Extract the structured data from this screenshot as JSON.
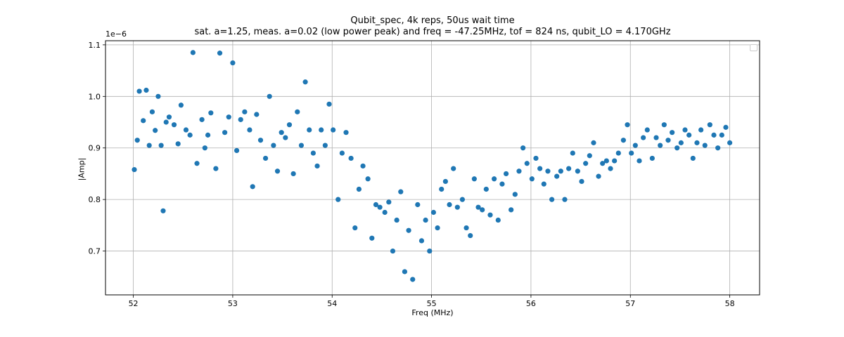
{
  "chart_data": {
    "type": "scatter",
    "title_line1": "Qubit_spec, 4k reps, 50us wait time",
    "title_line2": "sat. a=1.25, meas. a=0.02 (low power peak) and freq = -47.25MHz, tof = 824 ns, qubit_LO = 4.170GHz",
    "xlabel": "Freq (MHz)",
    "ylabel": "|Amp|",
    "y_offset_label": "1e−6",
    "xlim": [
      51.72,
      58.3
    ],
    "ylim": [
      0.615,
      1.108
    ],
    "x_ticks": [
      52,
      53,
      54,
      55,
      56,
      57,
      58
    ],
    "x_tick_labels": [
      "52",
      "53",
      "54",
      "55",
      "56",
      "57",
      "58"
    ],
    "y_ticks": [
      0.7,
      0.8,
      0.9,
      1.0,
      1.1
    ],
    "y_tick_labels": [
      "0.7",
      "0.8",
      "0.9",
      "1.0",
      "1.1"
    ],
    "grid": true,
    "legend": "upper right, empty",
    "marker_color": "#1f77b4",
    "series": [
      {
        "x": [
          52.01,
          52.04,
          52.06,
          52.1,
          52.13,
          52.16,
          52.19,
          52.22,
          52.25,
          52.28,
          52.3,
          52.33,
          52.36,
          52.41,
          52.45,
          52.48,
          52.53,
          52.57,
          52.6,
          52.64,
          52.69,
          52.72,
          52.75,
          52.78,
          52.83,
          52.87,
          52.92,
          52.96,
          53.0,
          53.04,
          53.08,
          53.12,
          53.17,
          53.2,
          53.24,
          53.28,
          53.33,
          53.37,
          53.41,
          53.45,
          53.49,
          53.53,
          53.57,
          53.61,
          53.65,
          53.69,
          53.73,
          53.77,
          53.81,
          53.85,
          53.89,
          53.93,
          53.97,
          54.01,
          54.06,
          54.1,
          54.14,
          54.19,
          54.23,
          54.27,
          54.31,
          54.36,
          54.4,
          54.44,
          54.48,
          54.53,
          54.57,
          54.61,
          54.65,
          54.69,
          54.73,
          54.77,
          54.81,
          54.86,
          54.9,
          54.94,
          54.98,
          55.02,
          55.06,
          55.1,
          55.14,
          55.18,
          55.22,
          55.26,
          55.31,
          55.35,
          55.39,
          55.43,
          55.47,
          55.51,
          55.55,
          55.59,
          55.63,
          55.67,
          55.71,
          55.75,
          55.8,
          55.84,
          55.88,
          55.92,
          55.96,
          56.01,
          56.05,
          56.09,
          56.13,
          56.17,
          56.21,
          56.26,
          56.3,
          56.34,
          56.38,
          56.42,
          56.47,
          56.51,
          56.55,
          56.59,
          56.63,
          56.68,
          56.72,
          56.76,
          56.8,
          56.84,
          56.88,
          56.93,
          56.97,
          57.01,
          57.05,
          57.09,
          57.13,
          57.17,
          57.22,
          57.26,
          57.3,
          57.34,
          57.38,
          57.42,
          57.47,
          57.51,
          57.55,
          57.59,
          57.63,
          57.67,
          57.71,
          57.75,
          57.8,
          57.84,
          57.88,
          57.92,
          57.96,
          58.0
        ],
        "y": [
          0.858,
          0.915,
          1.01,
          0.953,
          1.012,
          0.905,
          0.97,
          0.934,
          1.0,
          0.905,
          0.778,
          0.95,
          0.96,
          0.945,
          0.908,
          0.983,
          0.935,
          0.925,
          1.085,
          0.87,
          0.955,
          0.9,
          0.925,
          0.968,
          0.86,
          1.084,
          0.93,
          0.96,
          1.065,
          0.895,
          0.955,
          0.97,
          0.935,
          0.825,
          0.965,
          0.915,
          0.88,
          1.0,
          0.905,
          0.855,
          0.93,
          0.92,
          0.945,
          0.85,
          0.97,
          0.905,
          1.028,
          0.935,
          0.89,
          0.865,
          0.935,
          0.905,
          0.985,
          0.935,
          0.8,
          0.89,
          0.93,
          0.88,
          0.745,
          0.82,
          0.865,
          0.84,
          0.725,
          0.79,
          0.785,
          0.775,
          0.795,
          0.7,
          0.76,
          0.815,
          0.66,
          0.74,
          0.645,
          0.79,
          0.72,
          0.76,
          0.7,
          0.775,
          0.745,
          0.82,
          0.835,
          0.79,
          0.86,
          0.785,
          0.8,
          0.745,
          0.73,
          0.84,
          0.785,
          0.78,
          0.82,
          0.77,
          0.84,
          0.76,
          0.83,
          0.85,
          0.78,
          0.81,
          0.855,
          0.9,
          0.87,
          0.84,
          0.88,
          0.86,
          0.83,
          0.855,
          0.8,
          0.845,
          0.855,
          0.8,
          0.86,
          0.89,
          0.855,
          0.835,
          0.87,
          0.885,
          0.91,
          0.845,
          0.87,
          0.875,
          0.86,
          0.875,
          0.89,
          0.915,
          0.945,
          0.89,
          0.905,
          0.875,
          0.92,
          0.935,
          0.88,
          0.92,
          0.905,
          0.945,
          0.915,
          0.93,
          0.9,
          0.91,
          0.935,
          0.925,
          0.88,
          0.91,
          0.935,
          0.905,
          0.945,
          0.925,
          0.9,
          0.925,
          0.94,
          0.91
        ]
      }
    ]
  }
}
